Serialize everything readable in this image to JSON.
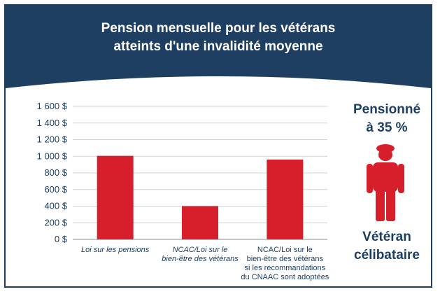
{
  "title_line1": "Pension mensuelle pour les vétérans",
  "title_line2": "atteints d'une invalidité moyenne",
  "colors": {
    "header": "#1e3f62",
    "bar": "#d71f2b",
    "text": "#1e3f62"
  },
  "side": {
    "top_line1": "Pensionné",
    "top_line2": "à 35 %",
    "bottom_line1": "Vétéran",
    "bottom_line2": "célibataire",
    "icon": "person-with-beret-icon"
  },
  "chart_data": {
    "type": "bar",
    "title": "Pension mensuelle pour les vétérans atteints d'une invalidité moyenne",
    "categories": [
      "Loi sur les pensions",
      "NCAC/Loi sur le bien-être des vétérans",
      "NCAC/Loi sur le bien-être des vétérans si les recommandations du CNAAC sont adoptées"
    ],
    "category_label_lines": [
      [
        "Loi sur les pensions"
      ],
      [
        "NCAC/Loi sur le",
        "bien-être des vétérans"
      ],
      [
        "NCAC/Loi sur le",
        "bien-être des vétérans",
        "si les recommandations",
        "du CNAAC sont adoptées"
      ]
    ],
    "category_italic": [
      true,
      true,
      false
    ],
    "values": [
      1005,
      400,
      960
    ],
    "ylim": [
      0,
      1600
    ],
    "yticks": [
      0,
      200,
      400,
      600,
      800,
      1000,
      1200,
      1400,
      1600
    ],
    "ytick_labels": [
      "0 $",
      "200 $",
      "400 $",
      "600 $",
      "800 $",
      "1 000 $",
      "1 200 $",
      "1 400 $",
      "1 600 $"
    ],
    "grid": true,
    "xlabel": "",
    "ylabel": ""
  }
}
